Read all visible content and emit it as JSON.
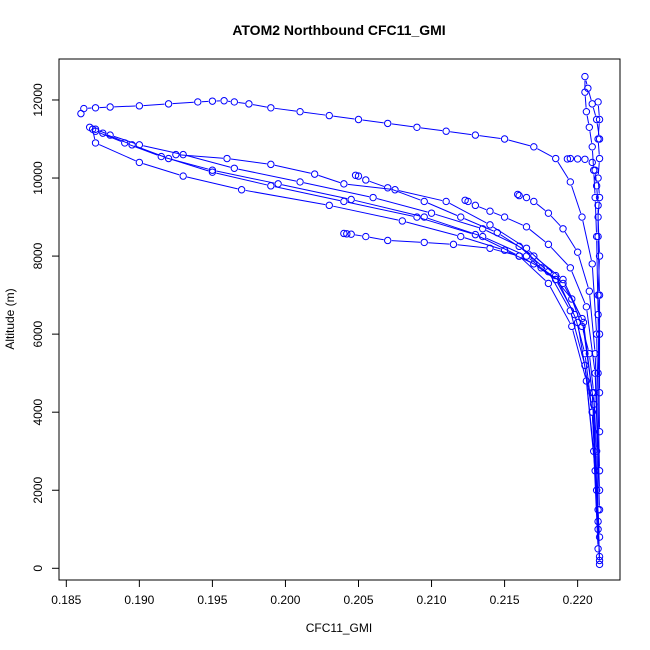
{
  "chart_data": {
    "type": "line",
    "title": "ATOM2 Northbound CFC11_GMI",
    "xlabel": "CFC11_GMI",
    "ylabel": "Altitude (m)",
    "xlim": [
      0.1845,
      0.2229
    ],
    "ylim": [
      -300,
      13050
    ],
    "xticks": [
      "0.185",
      "0.190",
      "0.195",
      "0.200",
      "0.205",
      "0.210",
      "0.215",
      "0.220"
    ],
    "yticks": [
      "0",
      "2000",
      "4000",
      "6000",
      "8000",
      "10000",
      "12000"
    ],
    "grid": false,
    "legend": "none",
    "marker": "open-circle",
    "color": "#0000ff",
    "series": [
      {
        "x": [
          0.2215,
          0.2214,
          0.2213,
          0.2211,
          0.2208,
          0.2203,
          0.2196,
          0.2185,
          0.217,
          0.215,
          0.212,
          0.208,
          0.203,
          0.197,
          0.193,
          0.19,
          0.187,
          0.1868,
          0.1866
        ],
        "y": [
          100,
          1500,
          3000,
          4500,
          5500,
          6200,
          6900,
          7400,
          7800,
          8150,
          8500,
          8900,
          9300,
          9700,
          10050,
          10400,
          10900,
          11250,
          11300
        ]
      },
      {
        "x": [
          0.2215,
          0.2213,
          0.221,
          0.2205,
          0.2198,
          0.2185,
          0.2165,
          0.2135,
          0.2095,
          0.2045,
          0.1995,
          0.195,
          0.1915,
          0.189,
          0.187
        ],
        "y": [
          200,
          2000,
          4000,
          5500,
          6500,
          7400,
          8000,
          8500,
          9000,
          9450,
          9850,
          10200,
          10550,
          10900,
          11200
        ]
      },
      {
        "x": [
          0.2215,
          0.2212,
          0.2206,
          0.2196,
          0.218,
          0.216,
          0.213,
          0.209,
          0.204,
          0.199,
          0.195,
          0.192,
          0.1895,
          0.1875
        ],
        "y": [
          300,
          2500,
          4800,
          6200,
          7300,
          8000,
          8550,
          9000,
          9400,
          9800,
          10150,
          10500,
          10850,
          11150
        ]
      },
      {
        "x": [
          0.2214,
          0.2211,
          0.2205,
          0.2195,
          0.218,
          0.216,
          0.2135,
          0.21,
          0.206,
          0.201,
          0.1965,
          0.193,
          0.19,
          0.188,
          0.187
        ],
        "y": [
          500,
          3000,
          5200,
          6600,
          7600,
          8250,
          8700,
          9100,
          9500,
          9900,
          10250,
          10600,
          10850,
          11100,
          11250
        ]
      },
      {
        "x": [
          0.2215,
          0.221,
          0.22,
          0.2185,
          0.2165,
          0.214,
          0.211,
          0.2075,
          0.204,
          0.202,
          0.199,
          0.196,
          0.1925
        ],
        "y": [
          800,
          4000,
          6300,
          7500,
          8200,
          8800,
          9400,
          9700,
          9850,
          10100,
          10350,
          10500,
          10600
        ]
      },
      {
        "x": [
          0.2214,
          0.2211,
          0.2204,
          0.219,
          0.217,
          0.2145,
          0.212,
          0.2095,
          0.207,
          0.2055,
          0.205,
          0.2048
        ],
        "y": [
          1000,
          4200,
          6300,
          7400,
          8000,
          8600,
          9000,
          9400,
          9750,
          9950,
          10050,
          10070
        ]
      },
      {
        "x": [
          0.2214,
          0.221,
          0.2203,
          0.219,
          0.2175,
          0.216,
          0.214,
          0.2115,
          0.2095,
          0.207,
          0.2055,
          0.2045,
          0.2042,
          0.204
        ],
        "y": [
          1200,
          4500,
          6400,
          7300,
          7700,
          8000,
          8200,
          8300,
          8350,
          8400,
          8500,
          8560,
          8570,
          8580
        ]
      },
      {
        "x": [
          0.2215,
          0.2212,
          0.2206,
          0.2195,
          0.218,
          0.2165,
          0.215,
          0.214,
          0.213,
          0.2125,
          0.2123
        ],
        "y": [
          1500,
          5000,
          6700,
          7700,
          8300,
          8750,
          9000,
          9150,
          9300,
          9400,
          9430
        ]
      },
      {
        "x": [
          0.2215,
          0.2212,
          0.2208,
          0.22,
          0.219,
          0.218,
          0.217,
          0.2165,
          0.216,
          0.2159
        ],
        "y": [
          2000,
          5500,
          7100,
          8100,
          8700,
          9100,
          9400,
          9500,
          9550,
          9580
        ]
      },
      {
        "x": [
          0.2215,
          0.2213,
          0.221,
          0.2203,
          0.2195,
          0.2185,
          0.217,
          0.215,
          0.213,
          0.211,
          0.209,
          0.207,
          0.205,
          0.203,
          0.201,
          0.199,
          0.1975,
          0.1965,
          0.1958,
          0.195,
          0.194,
          0.192,
          0.19,
          0.188,
          0.187,
          0.1862,
          0.186
        ],
        "y": [
          2500,
          6000,
          7800,
          9000,
          9900,
          10500,
          10800,
          11000,
          11100,
          11200,
          11300,
          11400,
          11500,
          11600,
          11700,
          11800,
          11900,
          11950,
          11980,
          11970,
          11950,
          11900,
          11850,
          11820,
          11800,
          11780,
          11650
        ]
      },
      {
        "x": [
          0.2215,
          0.2214,
          0.2213,
          0.2212,
          0.2211,
          0.221,
          0.2208,
          0.2206,
          0.2205,
          0.2205,
          0.2207,
          0.221,
          0.2213,
          0.2215
        ],
        "y": [
          3500,
          6500,
          8500,
          9500,
          10200,
          10800,
          11300,
          11700,
          12200,
          12600,
          12300,
          11900,
          11500,
          11000
        ]
      },
      {
        "x": [
          0.2215,
          0.2215,
          0.2214,
          0.2214,
          0.2213,
          0.2212,
          0.221,
          0.2205,
          0.22,
          0.2195,
          0.2193
        ],
        "y": [
          4500,
          7000,
          8500,
          9300,
          9800,
          10200,
          10400,
          10480,
          10490,
          10500,
          10490
        ]
      },
      {
        "x": [
          0.2214,
          0.2215,
          0.2214,
          0.2215,
          0.2214,
          0.2215,
          0.2214,
          0.2215,
          0.2214,
          0.2215,
          0.2214
        ],
        "y": [
          5000,
          6000,
          7000,
          8000,
          9000,
          9500,
          10000,
          10500,
          11000,
          11500,
          11950
        ]
      }
    ]
  }
}
